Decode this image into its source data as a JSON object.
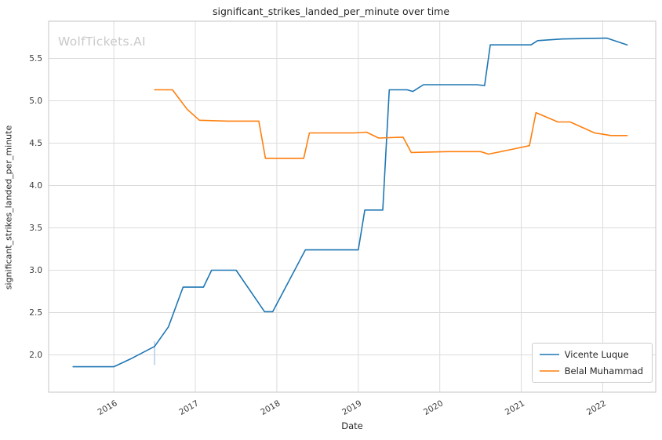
{
  "watermark": "WolfTickets.AI",
  "chart_data": {
    "type": "line",
    "title": "significant_strikes_landed_per_minute over time",
    "xlabel": "Date",
    "ylabel": "significant_strikes_landed_per_minute",
    "x_ticks": [
      2016,
      2017,
      2018,
      2019,
      2020,
      2021,
      2022
    ],
    "y_ticks": [
      2.0,
      2.5,
      3.0,
      3.5,
      4.0,
      4.5,
      5.0,
      5.5
    ],
    "xlim": [
      2015.2,
      2022.65
    ],
    "ylim": [
      1.56,
      5.94
    ],
    "grid": true,
    "legend_position": "lower right",
    "grid_color": "#dcdcdc",
    "spine_color": "#cfcfcf",
    "series": [
      {
        "name": "Vicente Luque",
        "color": "#1f77b4",
        "x": [
          2015.5,
          2016.0,
          2016.2,
          2016.5,
          2016.67,
          2016.85,
          2017.1,
          2017.2,
          2017.5,
          2017.85,
          2017.95,
          2018.35,
          2019.0,
          2019.08,
          2019.3,
          2019.38,
          2019.6,
          2019.67,
          2019.8,
          2020.45,
          2020.55,
          2020.62,
          2021.12,
          2021.2,
          2021.5,
          2022.05,
          2022.3
        ],
        "y": [
          1.86,
          1.86,
          1.95,
          2.1,
          2.33,
          2.8,
          2.8,
          3.0,
          3.0,
          2.51,
          2.51,
          3.24,
          3.24,
          3.71,
          3.71,
          5.13,
          5.13,
          5.11,
          5.19,
          5.19,
          5.18,
          5.66,
          5.66,
          5.71,
          5.73,
          5.74,
          5.66
        ]
      },
      {
        "name": "Belal Muhammad",
        "color": "#ff7f0e",
        "x": [
          2016.5,
          2016.72,
          2016.9,
          2017.05,
          2017.4,
          2017.78,
          2017.86,
          2018.33,
          2018.4,
          2018.95,
          2019.1,
          2019.25,
          2019.55,
          2019.65,
          2020.1,
          2020.5,
          2020.6,
          2020.95,
          2021.1,
          2021.18,
          2021.45,
          2021.6,
          2021.9,
          2022.1,
          2022.3
        ],
        "y": [
          5.13,
          5.13,
          4.9,
          4.77,
          4.76,
          4.76,
          4.32,
          4.32,
          4.62,
          4.62,
          4.63,
          4.56,
          4.57,
          4.39,
          4.4,
          4.4,
          4.37,
          4.44,
          4.47,
          4.86,
          4.75,
          4.75,
          4.62,
          4.59,
          4.59
        ]
      }
    ],
    "error_bar": {
      "x": 2016.5,
      "y_low": 1.88,
      "y_high": 2.16,
      "color": "#a9cbe4"
    }
  }
}
